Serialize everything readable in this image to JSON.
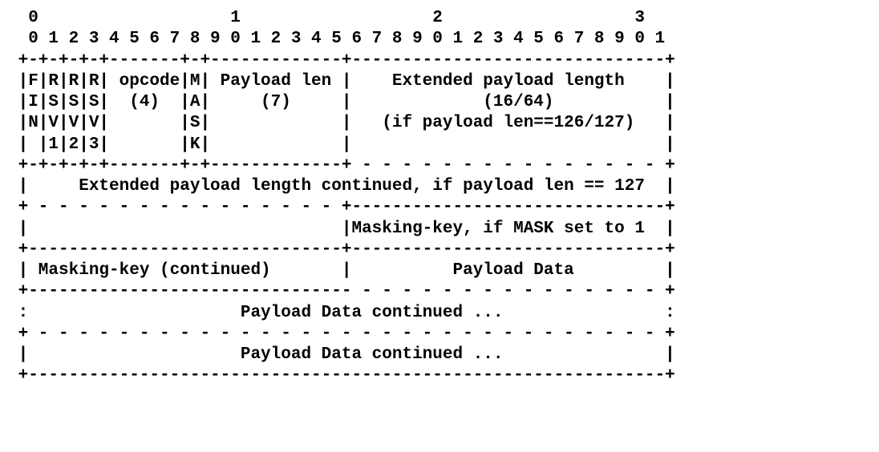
{
  "diagram": {
    "type": "ascii-frame-layout",
    "font_family": "Courier New",
    "font_size_pt": 16,
    "font_weight": "bold",
    "text_color": "#000000",
    "background_color": "#ffffff",
    "bit_header_major": "  0                   1                   2                   3",
    "bit_header_minor": "  0 1 2 3 4 5 6 7 8 9 0 1 2 3 4 5 6 7 8 9 0 1 2 3 4 5 6 7 8 9 0 1",
    "sep_top": " +-+-+-+-+-------+-+-------------+-------------------------------+",
    "row1_line1": " |F|R|R|R| opcode|M| Payload len |    Extended payload length    |",
    "row1_line2": " |I|S|S|S|  (4)  |A|     (7)     |             (16/64)           |",
    "row1_line3": " |N|V|V|V|       |S|             |   (if payload len==126/127)   |",
    "row1_line4": " | |1|2|3|       |K|             |                               |",
    "sep_row1": " +-+-+-+-+-------+-+-------------+ - - - - - - - - - - - - - - - +",
    "row2": " |     Extended payload length continued, if payload len == 127  |",
    "sep_row2": " + - - - - - - - - - - - - - - - +-------------------------------+",
    "row3": " |                               |Masking-key, if MASK set to 1  |",
    "sep_row3": " +-------------------------------+-------------------------------+",
    "row4": " | Masking-key (continued)       |          Payload Data         |",
    "sep_row4": " +-------------------------------- - - - - - - - - - - - - - - - +",
    "row5": " :                     Payload Data continued ...                :",
    "sep_row5": " + - - - - - - - - - - - - - - - - - - - - - - - - - - - - - - - +",
    "row6": " |                     Payload Data continued ...                |",
    "sep_bottom": " +---------------------------------------------------------------+"
  }
}
